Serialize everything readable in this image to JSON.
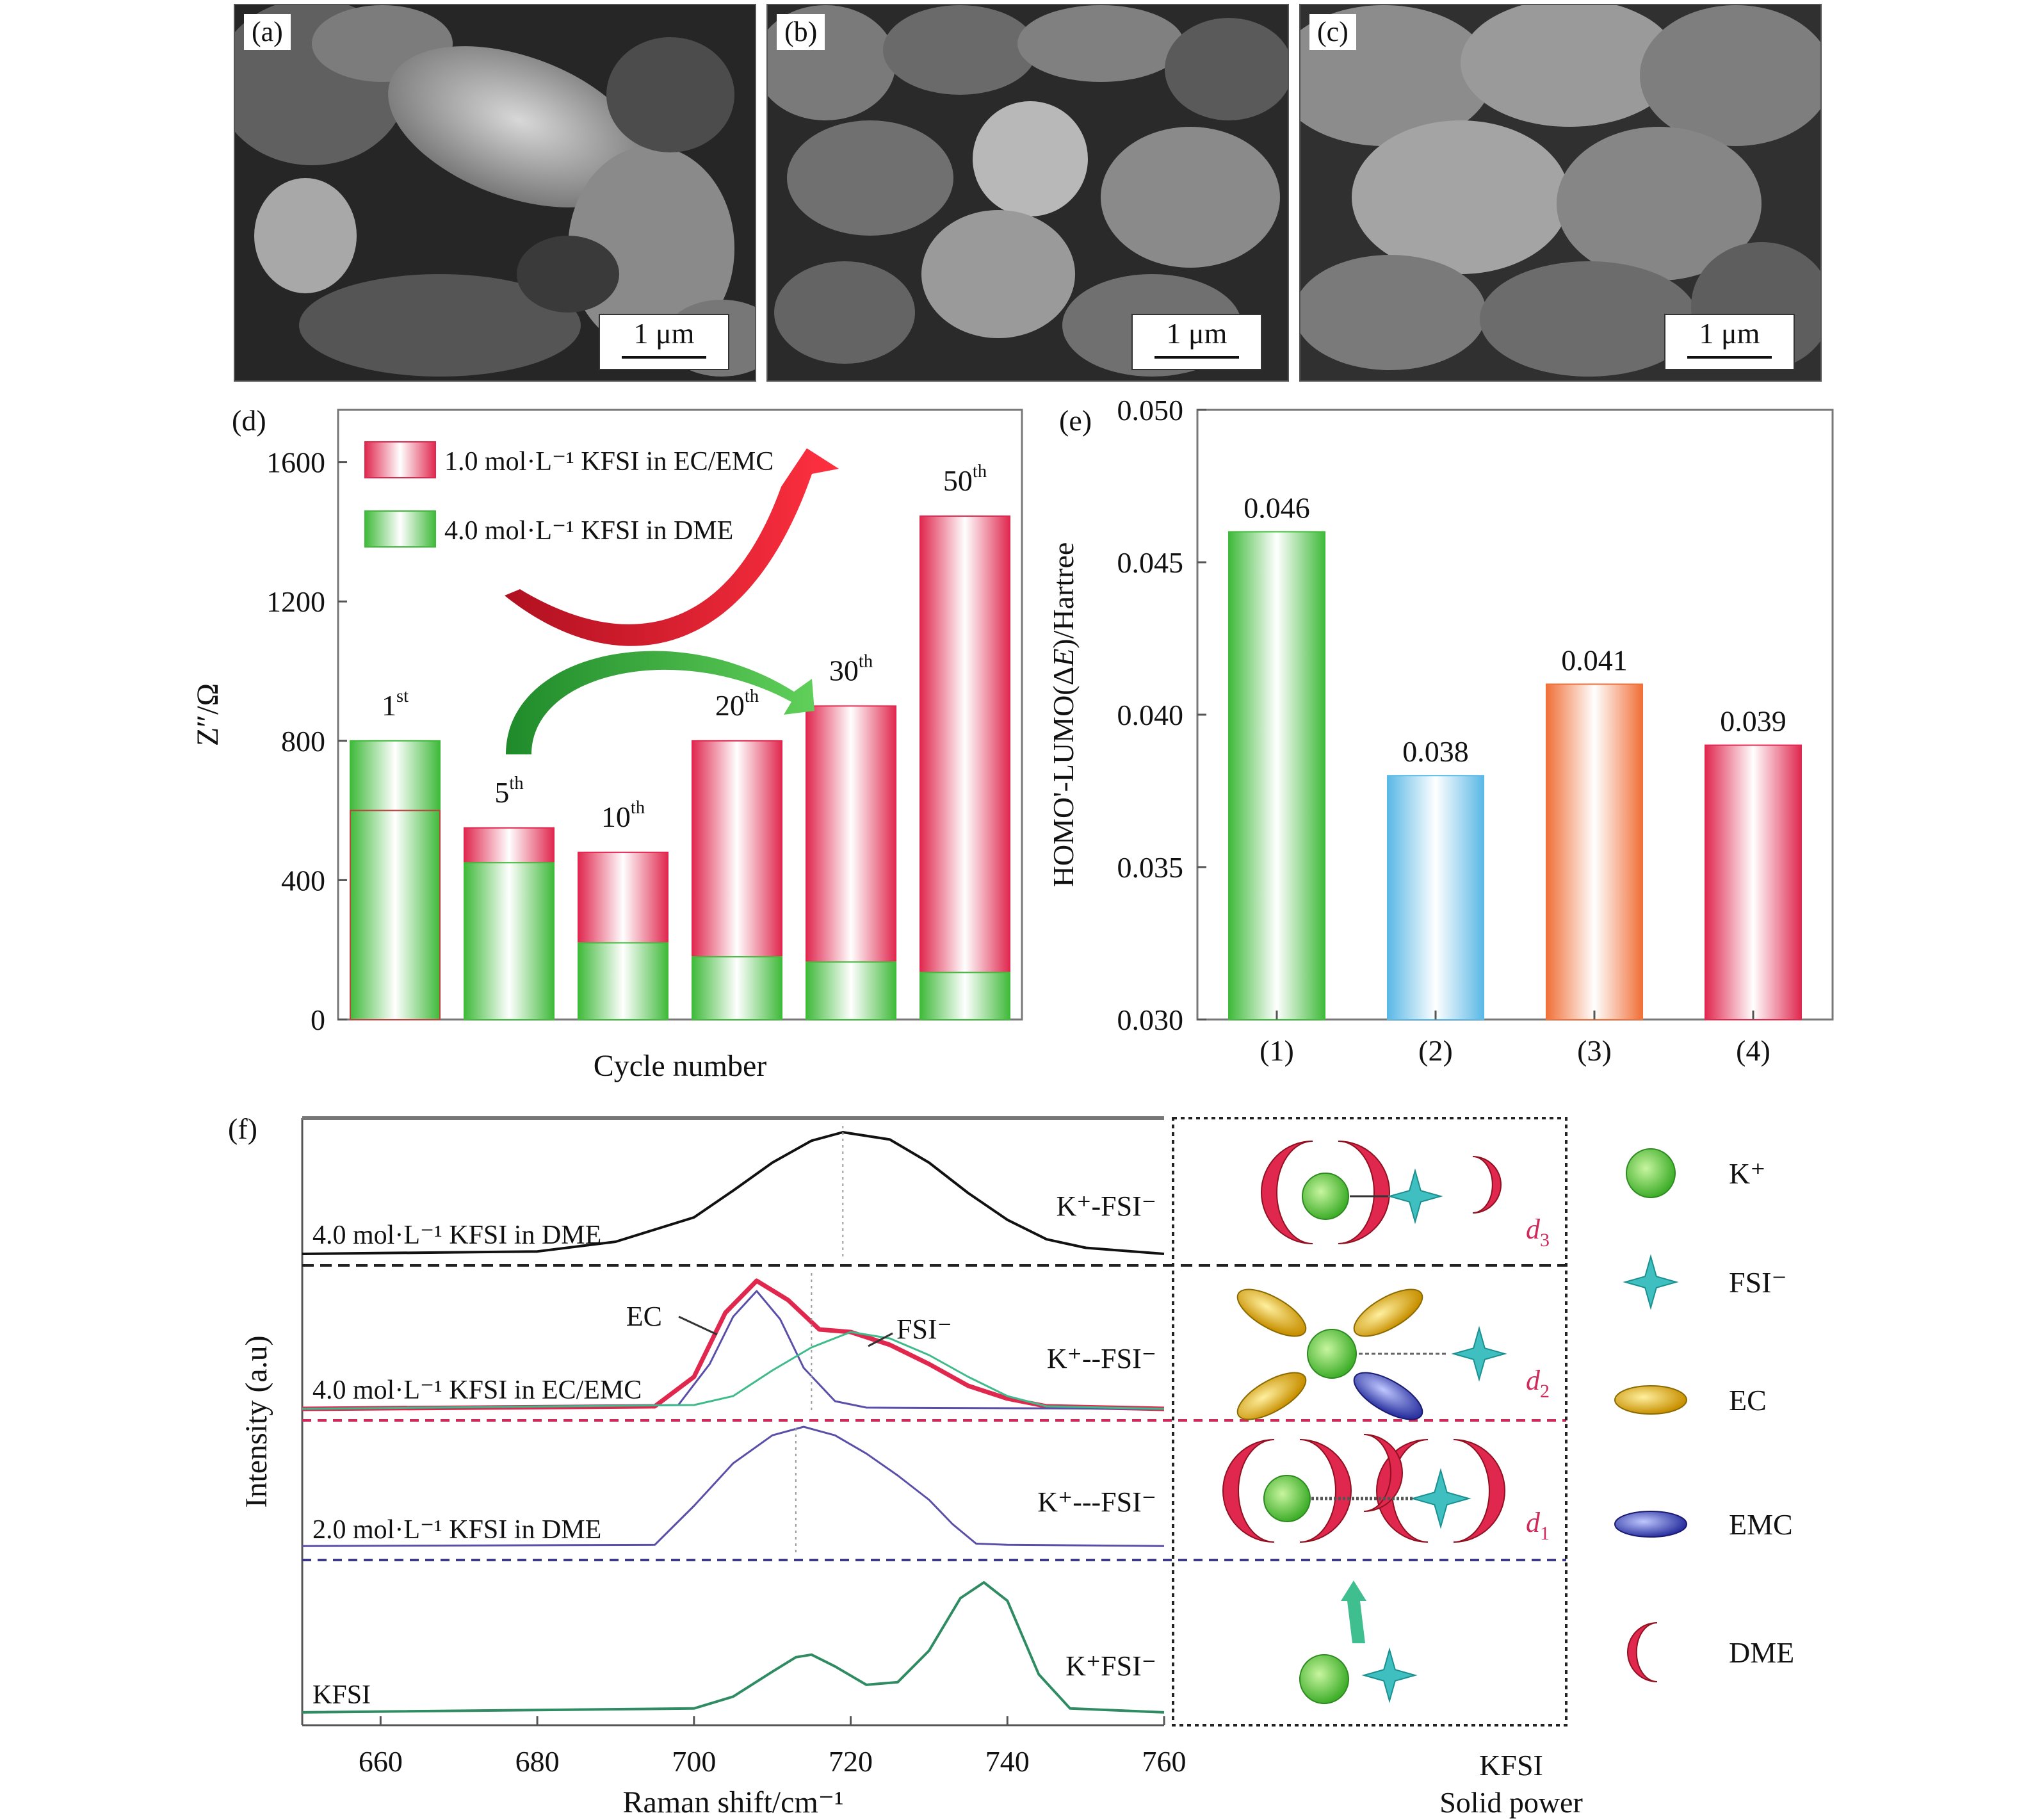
{
  "panels": {
    "a": {
      "label": "(a)",
      "scale": "1 μm"
    },
    "b": {
      "label": "(b)",
      "scale": "1 μm"
    },
    "c": {
      "label": "(c)",
      "scale": "1 μm"
    }
  },
  "chart_data": [
    {
      "panel": "(d)",
      "type": "bar",
      "xlabel": "Cycle number",
      "ylabel": "Z″/Ω",
      "ylim": [
        0,
        1750
      ],
      "yticks": [
        0,
        400,
        800,
        1200,
        1600
      ],
      "categories": [
        "1st",
        "5th",
        "10th",
        "20th",
        "30th",
        "50th"
      ],
      "category_labels": [
        {
          "num": "1",
          "sup": "st"
        },
        {
          "num": "5",
          "sup": "th"
        },
        {
          "num": "10",
          "sup": "th"
        },
        {
          "num": "20",
          "sup": "th"
        },
        {
          "num": "30",
          "sup": "th"
        },
        {
          "num": "50",
          "sup": "th"
        }
      ],
      "series": [
        {
          "name": "1.0 mol·L⁻¹ KFSI in EC/EMC",
          "color": "#e0284f",
          "values": [
            600,
            550,
            480,
            800,
            900,
            1445
          ]
        },
        {
          "name": "4.0 mol·L⁻¹ KFSI in DME",
          "color": "#3fba3a",
          "values": [
            800,
            450,
            220,
            180,
            165,
            135
          ]
        }
      ],
      "legend": "top-left",
      "grid": false
    },
    {
      "panel": "(e)",
      "type": "bar",
      "ylabel_parts": {
        "pre": "HOMO'-LUMO(Δ",
        "ital": "E",
        "post": ")/Hartree"
      },
      "ylim": [
        0.03,
        0.05
      ],
      "yticks": [
        "0.030",
        "0.035",
        "0.040",
        "0.045",
        "0.050"
      ],
      "categories": [
        "(1)",
        "(2)",
        "(3)",
        "(4)"
      ],
      "values": [
        0.046,
        0.038,
        0.041,
        0.039
      ],
      "data_labels": [
        "0.046",
        "0.038",
        "0.041",
        "0.039"
      ],
      "colors": [
        "#3fba3a",
        "#5ab8e6",
        "#f07038",
        "#e0284f"
      ],
      "grid": false
    },
    {
      "panel": "(f)",
      "type": "line",
      "xlabel": "Raman shift/cm⁻¹",
      "ylabel": "Intensity (a.u)",
      "xlim": [
        650,
        760
      ],
      "xticks": [
        660,
        680,
        700,
        720,
        740,
        760
      ],
      "series": [
        {
          "name": "4.0 mol·L⁻¹ KFSI in DME",
          "color": "#111111",
          "x": [
            650,
            680,
            690,
            700,
            705,
            710,
            715,
            719,
            725,
            730,
            735,
            740,
            745,
            750,
            760
          ],
          "y": [
            0,
            0.02,
            0.1,
            0.3,
            0.52,
            0.75,
            0.93,
            1.0,
            0.94,
            0.75,
            0.5,
            0.28,
            0.12,
            0.05,
            0
          ]
        },
        {
          "name": "4.0 mol·L⁻¹ KFSI in EC/EMC",
          "color": "#e0284f",
          "x": [
            650,
            695,
            700,
            704,
            708,
            712,
            716,
            720,
            725,
            730,
            735,
            740,
            745,
            760
          ],
          "y": [
            0,
            0.02,
            0.25,
            0.75,
            1.0,
            0.85,
            0.62,
            0.6,
            0.5,
            0.35,
            0.18,
            0.08,
            0.02,
            0
          ]
        },
        {
          "name": "EC",
          "color": "#5a4fa8",
          "x": [
            650,
            698,
            702,
            705,
            708,
            711,
            714,
            718,
            722,
            760
          ],
          "y": [
            0,
            0.03,
            0.35,
            0.72,
            0.92,
            0.7,
            0.32,
            0.06,
            0.01,
            0
          ]
        },
        {
          "name": "FSI⁻",
          "color": "#3fba8a",
          "x": [
            650,
            700,
            705,
            710,
            715,
            720,
            725,
            730,
            735,
            740,
            745,
            760
          ],
          "y": [
            0,
            0.03,
            0.1,
            0.3,
            0.48,
            0.6,
            0.55,
            0.42,
            0.25,
            0.1,
            0.02,
            0
          ]
        },
        {
          "name": "2.0 mol·L⁻¹ KFSI in DME",
          "color": "#5a4fa8",
          "x": [
            650,
            695,
            700,
            705,
            710,
            714,
            718,
            722,
            726,
            730,
            733,
            736,
            740,
            760
          ],
          "y": [
            0.02,
            0.03,
            0.35,
            0.7,
            0.93,
            1.0,
            0.93,
            0.78,
            0.6,
            0.4,
            0.2,
            0.04,
            0.03,
            0.02
          ]
        },
        {
          "name": "KFSI",
          "color": "#2e8b62",
          "x": [
            650,
            700,
            705,
            710,
            713,
            715,
            718,
            722,
            726,
            730,
            734,
            737,
            740,
            744,
            748,
            760
          ],
          "y": [
            0.01,
            0.04,
            0.13,
            0.32,
            0.43,
            0.45,
            0.36,
            0.22,
            0.24,
            0.48,
            0.88,
            1.0,
            0.86,
            0.3,
            0.04,
            0.01
          ]
        }
      ],
      "row_labels": [
        "4.0 mol·L⁻¹ KFSI in DME",
        "4.0 mol·L⁻¹ KFSI in EC/EMC",
        "2.0 mol·L⁻¹ KFSI in DME",
        "KFSI"
      ],
      "right_labels": [
        "K⁺-FSI⁻",
        "K⁺--FSI⁻",
        "K⁺---FSI⁻",
        "K⁺FSI⁻"
      ],
      "peak_labels": [
        "EC",
        "FSI⁻"
      ],
      "distance_labels": [
        {
          "base": "d",
          "sub": "3"
        },
        {
          "base": "d",
          "sub": "2"
        },
        {
          "base": "d",
          "sub": "1"
        }
      ],
      "legend_items": [
        {
          "symbol": "K⁺",
          "color": "#5fcf3a"
        },
        {
          "symbol": "FSI⁻",
          "color": "#3fbfc0"
        },
        {
          "symbol": "EC",
          "color": "#e0b020"
        },
        {
          "symbol": "EMC",
          "color": "#3a44b0"
        },
        {
          "symbol": "DME",
          "color": "#e0284f"
        }
      ],
      "bottom_caption": [
        "KFSI",
        "Solid power"
      ]
    }
  ]
}
